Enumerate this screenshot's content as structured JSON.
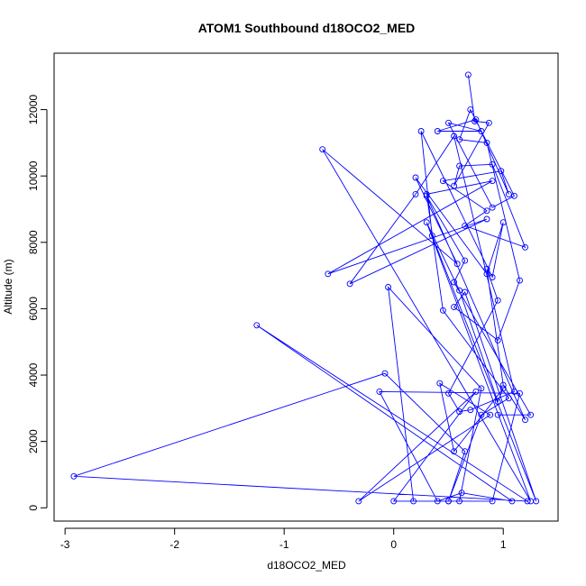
{
  "chart_data": {
    "type": "line",
    "title": "ATOM1 Southbound d18OCO2_MED",
    "xlabel": "d18OCO2_MED",
    "ylabel": "Altitude (m)",
    "xlim": [
      -3.1,
      1.5
    ],
    "ylim": [
      -400,
      13700
    ],
    "xticks": [
      -3,
      -2,
      -1,
      0,
      1
    ],
    "yticks": [
      0,
      2000,
      4000,
      6000,
      8000,
      10000,
      12000
    ],
    "grid": false,
    "line_color": "#0000ff",
    "marker": "open-circle",
    "series": [
      {
        "x": [
          0.68,
          0.74,
          0.87,
          0.55,
          0.6,
          0.9,
          1.2,
          0.65,
          0.85,
          0.45,
          0.98,
          1.05,
          0.75,
          0.4,
          0.8,
          0.5,
          0.9,
          1.1,
          0.7,
          0.6,
          0.85,
          1.15,
          0.95,
          0.55,
          0.65,
          1.3,
          0.35,
          0.25,
          0.9,
          1.0,
          0.85,
          0.2,
          0.58,
          -0.65,
          1.25,
          0.3,
          0.6,
          0.95,
          1.0,
          0.55,
          0.42,
          0.88,
          -0.32,
          0.75,
          0.0,
          0.6,
          0.8,
          -0.05,
          0.18,
          0.5,
          0.9,
          1.15,
          -0.13,
          0.4,
          0.62,
          1.08,
          -1.25,
          1.22,
          -2.92,
          -0.08,
          0.65,
          0.5,
          0.8,
          1.05,
          0.45,
          0.3,
          0.9,
          -0.6,
          0.85,
          -0.4,
          0.2,
          0.55,
          1.1,
          0.7,
          0.6,
          0.5,
          0.95,
          0.85,
          1.0,
          1.2,
          0.3,
          0.65,
          0.55,
          1.25,
          0.95
        ],
        "y": [
          13050,
          11650,
          11600,
          9700,
          10300,
          10350,
          7850,
          8500,
          8950,
          9850,
          10150,
          9450,
          11700,
          11350,
          11350,
          11600,
          9050,
          9400,
          12000,
          11100,
          11000,
          6850,
          5050,
          6050,
          6500,
          200,
          8200,
          11350,
          6950,
          8600,
          7050,
          9950,
          7350,
          10800,
          200,
          8600,
          6550,
          3200,
          3600,
          1700,
          3750,
          2800,
          200,
          3500,
          200,
          200,
          3600,
          6650,
          200,
          200,
          200,
          3450,
          3500,
          200,
          450,
          200,
          5500,
          200,
          950,
          4050,
          1700,
          200,
          2800,
          3300,
          5950,
          9450,
          9850,
          7050,
          8700,
          6750,
          9450,
          11200,
          3500,
          2950,
          2900,
          3450,
          6250,
          7200,
          3700,
          2650,
          9400,
          7450,
          6800,
          2800,
          2800
        ]
      }
    ]
  }
}
